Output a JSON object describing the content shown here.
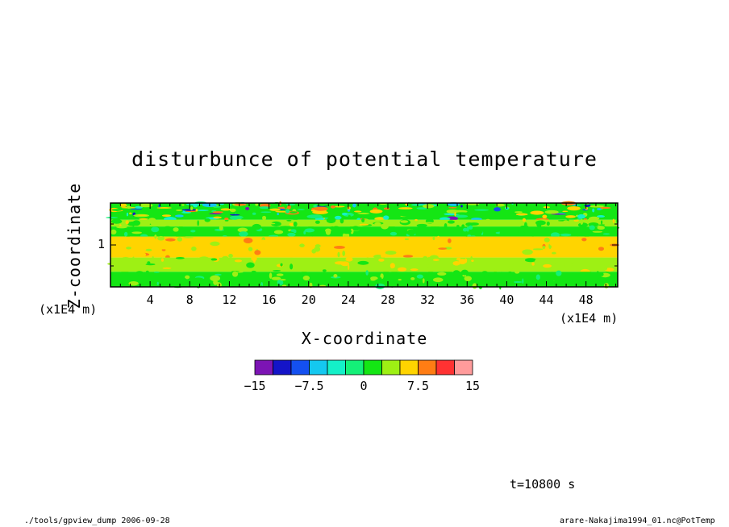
{
  "chart_data": {
    "type": "heatmap",
    "title": "disturbunce of potential temperature",
    "xlabel": "X-coordinate",
    "ylabel": "Z-coordinate",
    "x_unit": "(x1E4 m)",
    "y_unit": "(x1E4 m)",
    "x_ticks": [
      "4",
      "8",
      "12",
      "16",
      "20",
      "24",
      "28",
      "32",
      "36",
      "40",
      "44",
      "48"
    ],
    "y_ticks": [
      "1"
    ],
    "xlim": [
      0,
      51.2
    ],
    "ylim": [
      0.5,
      1.5
    ],
    "colorbar": {
      "levels": [
        -15,
        -12.5,
        -10,
        -7.5,
        -5,
        -2.5,
        0,
        2.5,
        5,
        7.5,
        10,
        12.5,
        15
      ],
      "labels": [
        "−15",
        "−7.5",
        "0",
        "7.5",
        "15"
      ],
      "colors": [
        "#7c14b4",
        "#1414c8",
        "#1450f0",
        "#14c8f0",
        "#14f0c8",
        "#14f078",
        "#14e614",
        "#9ef014",
        "#ffd400",
        "#ff7d14",
        "#ff3232",
        "#ff9b9b"
      ]
    },
    "bands": [
      {
        "z": [
          1.3,
          1.5
        ],
        "value": 1.5,
        "note": "green with scattered cyan/blue negative patches"
      },
      {
        "z": [
          1.22,
          1.3
        ],
        "value": 3.0
      },
      {
        "z": [
          1.1,
          1.22
        ],
        "value": 1.0
      },
      {
        "z": [
          0.85,
          1.1
        ],
        "value": 6.0
      },
      {
        "z": [
          0.68,
          0.85
        ],
        "value": 4.0
      },
      {
        "z": [
          0.5,
          0.68
        ],
        "value": 1.5
      }
    ]
  },
  "time_label": "t=10800 s",
  "footer": {
    "left": "./tools/gpview_dump  2006-09-28",
    "right": "arare-Nakajima1994_01.nc@PotTemp"
  }
}
